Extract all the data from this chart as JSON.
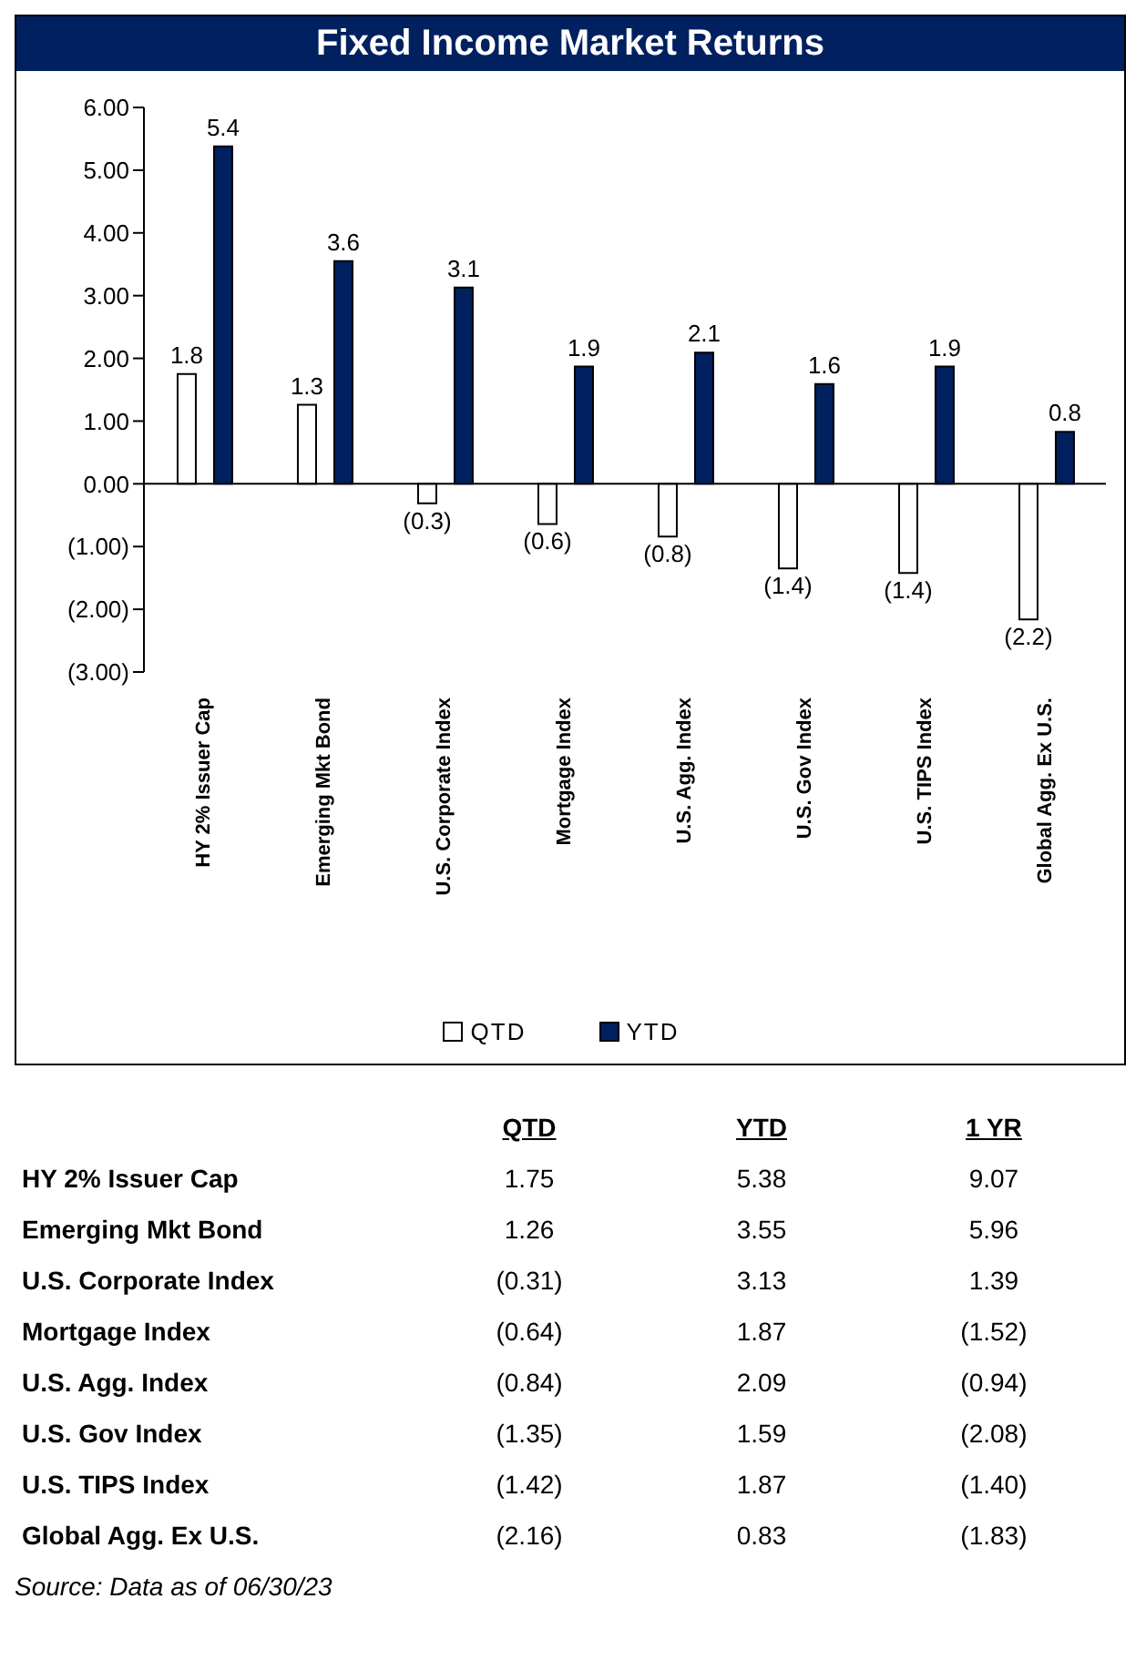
{
  "chart_data": [
    {
      "type": "bar",
      "title": "Fixed Income Market Returns",
      "categories": [
        "HY 2% Issuer Cap",
        "Emerging Mkt Bond",
        "U.S. Corporate Index",
        "Mortgage Index",
        "U.S. Agg. Index",
        "U.S. Gov Index",
        "U.S. TIPS Index",
        "Global Agg. Ex U.S."
      ],
      "series": [
        {
          "name": "QTD",
          "color": "#ffffff",
          "values": [
            1.75,
            1.26,
            -0.31,
            -0.64,
            -0.84,
            -1.35,
            -1.42,
            -2.16
          ],
          "value_labels": [
            "1.8",
            "1.3",
            "(0.3)",
            "(0.6)",
            "(0.8)",
            "(1.4)",
            "(1.4)",
            "(2.2)"
          ]
        },
        {
          "name": "YTD",
          "color": "#002060",
          "values": [
            5.38,
            3.55,
            3.13,
            1.87,
            2.09,
            1.59,
            1.87,
            0.83
          ],
          "value_labels": [
            "5.4",
            "3.6",
            "3.1",
            "1.9",
            "2.1",
            "1.6",
            "1.9",
            "0.8"
          ]
        }
      ],
      "ylim": [
        -3,
        6
      ],
      "yticks": [
        {
          "value": -3,
          "label": "(3.00)"
        },
        {
          "value": -2,
          "label": "(2.00)"
        },
        {
          "value": -1,
          "label": "(1.00)"
        },
        {
          "value": 0,
          "label": "0.00"
        },
        {
          "value": 1,
          "label": "1.00"
        },
        {
          "value": 2,
          "label": "2.00"
        },
        {
          "value": 3,
          "label": "3.00"
        },
        {
          "value": 4,
          "label": "4.00"
        },
        {
          "value": 5,
          "label": "5.00"
        },
        {
          "value": 6,
          "label": "6.00"
        }
      ],
      "ref_lines": [
        {
          "axis": "y",
          "value": 0,
          "color": "#000000"
        }
      ],
      "grid": false,
      "legend": "bottom"
    },
    {
      "type": "other",
      "categories": [
        "HY 2% Issuer Cap",
        "Emerging Mkt Bond",
        "U.S. Corporate Index",
        "Mortgage Index",
        "U.S. Agg. Index",
        "U.S. Gov Index",
        "U.S. TIPS Index",
        "Global Agg. Ex U.S."
      ],
      "series": [
        {
          "name": "QTD",
          "values": [
            1.75,
            1.26,
            -0.31,
            -0.64,
            -0.84,
            -1.35,
            -1.42,
            -2.16
          ],
          "value_labels": [
            "1.75",
            "1.26",
            "(0.31)",
            "(0.64)",
            "(0.84)",
            "(1.35)",
            "(1.42)",
            "(2.16)"
          ]
        },
        {
          "name": "YTD",
          "values": [
            5.38,
            3.55,
            3.13,
            1.87,
            2.09,
            1.59,
            1.87,
            0.83
          ],
          "value_labels": [
            "5.38",
            "3.55",
            "3.13",
            "1.87",
            "2.09",
            "1.59",
            "1.87",
            "0.83"
          ]
        },
        {
          "name": "1 YR",
          "values": [
            9.07,
            5.96,
            1.39,
            -1.52,
            -0.94,
            -2.08,
            -1.4,
            -1.83
          ],
          "value_labels": [
            "9.07",
            "5.96",
            "1.39",
            "(1.52)",
            "(0.94)",
            "(2.08)",
            "(1.40)",
            "(1.83)"
          ]
        }
      ],
      "annotations": [
        "Source: Data as of 06/30/23"
      ]
    }
  ]
}
